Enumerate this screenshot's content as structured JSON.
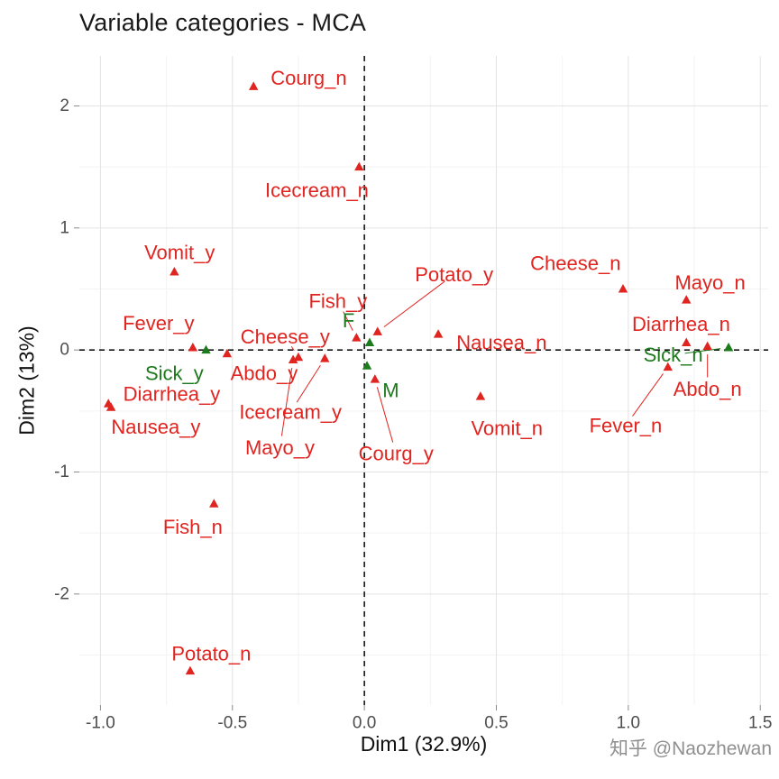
{
  "page": {
    "watermark": "知乎 @Naozhewan"
  },
  "chart_data": {
    "type": "scatter",
    "title": "Variable categories - MCA",
    "xlabel": "Dim1 (32.9%)",
    "ylabel": "Dim2 (13%)",
    "xlim": [
      -1.08,
      1.53
    ],
    "ylim": [
      -2.91,
      2.41
    ],
    "xticks": [
      "-1.0",
      "-0.5",
      "0.0",
      "0.5",
      "1.0",
      "1.5"
    ],
    "yticks": [
      "-2",
      "-1",
      "0",
      "1",
      "2"
    ],
    "grid": "major+minor",
    "zero_lines": "dashed",
    "legend": "none",
    "marker": "triangle",
    "colors": {
      "active": "#e02420",
      "supplementary": "#1d7a1d",
      "grid_major": "#e3e3e3",
      "grid_minor": "#f3f3f3",
      "axis_text": "#4d4d4d",
      "zero_line": "#151515"
    },
    "series": [
      {
        "name": "active-categories",
        "color": "#e02420",
        "points": [
          {
            "label": "Courg_n",
            "x": -0.42,
            "y": 2.16,
            "lx": -0.355,
            "ly": 2.23,
            "anchor": "start",
            "leader": false
          },
          {
            "label": "Icecream_n",
            "x": -0.02,
            "y": 1.5,
            "lx": -0.18,
            "ly": 1.31,
            "leader": false
          },
          {
            "label": "Vomit_y",
            "x": -0.72,
            "y": 0.64,
            "lx": -0.7,
            "ly": 0.8,
            "leader": false
          },
          {
            "label": "Cheese_n",
            "x": 0.98,
            "y": 0.5,
            "lx": 0.8,
            "ly": 0.71,
            "leader": false
          },
          {
            "label": "Mayo_n",
            "x": 1.22,
            "y": 0.41,
            "lx": 1.31,
            "ly": 0.55,
            "leader": false
          },
          {
            "label": "Potato_y",
            "x": 0.05,
            "y": 0.15,
            "lx": 0.34,
            "ly": 0.62,
            "leader": true
          },
          {
            "label": "Fish_y",
            "x": -0.03,
            "y": 0.1,
            "lx": -0.1,
            "ly": 0.4,
            "leader": true
          },
          {
            "label": "Nausea_n",
            "x": 0.28,
            "y": 0.13,
            "lx": 0.52,
            "ly": 0.06,
            "leader": false
          },
          {
            "label": "Fever_y",
            "x": -0.65,
            "y": 0.02,
            "lx": -0.78,
            "ly": 0.22,
            "leader": false
          },
          {
            "label": "Cheese_y",
            "x": -0.25,
            "y": -0.06,
            "lx": -0.3,
            "ly": 0.11,
            "leader": true
          },
          {
            "label": "Diarrhea_n",
            "x": 1.22,
            "y": 0.06,
            "lx": 1.2,
            "ly": 0.21,
            "leader": false
          },
          {
            "label": "Abdo_n",
            "x": 1.3,
            "y": 0.03,
            "lx": 1.3,
            "ly": -0.32,
            "leader": true
          },
          {
            "label": "Abdo_y",
            "x": -0.52,
            "y": -0.03,
            "lx": -0.38,
            "ly": -0.19,
            "leader": false
          },
          {
            "label": "Diarrhea_y",
            "x": -0.97,
            "y": -0.44,
            "lx": -0.73,
            "ly": -0.36,
            "leader": false
          },
          {
            "label": "Nausea_y",
            "x": -0.96,
            "y": -0.47,
            "lx": -0.79,
            "ly": -0.63,
            "leader": false
          },
          {
            "label": "Icecream_y",
            "x": -0.15,
            "y": -0.07,
            "lx": -0.28,
            "ly": -0.51,
            "leader": true
          },
          {
            "label": "Mayo_y",
            "x": -0.27,
            "y": -0.08,
            "lx": -0.32,
            "ly": -0.8,
            "leader": true
          },
          {
            "label": "Courg_y",
            "x": 0.04,
            "y": -0.24,
            "lx": 0.12,
            "ly": -0.85,
            "leader": true
          },
          {
            "label": "Vomit_n",
            "x": 0.44,
            "y": -0.38,
            "lx": 0.54,
            "ly": -0.64,
            "leader": false
          },
          {
            "label": "Fever_n",
            "x": 1.15,
            "y": -0.14,
            "lx": 0.99,
            "ly": -0.62,
            "leader": true
          },
          {
            "label": "Fish_n",
            "x": -0.57,
            "y": -1.26,
            "lx": -0.65,
            "ly": -1.45,
            "leader": false
          },
          {
            "label": "Potato_n",
            "x": -0.66,
            "y": -2.63,
            "lx": -0.58,
            "ly": -2.49,
            "leader": false
          }
        ]
      },
      {
        "name": "supplementary-categories",
        "color": "#1d7a1d",
        "points": [
          {
            "label": "F",
            "x": 0.02,
            "y": 0.06,
            "lx": -0.06,
            "ly": 0.24,
            "leader": false
          },
          {
            "label": "M",
            "x": 0.01,
            "y": -0.13,
            "lx": 0.1,
            "ly": -0.33,
            "leader": false
          },
          {
            "label": "Sick_y",
            "x": -0.6,
            "y": 0.0,
            "lx": -0.72,
            "ly": -0.19,
            "leader": false
          },
          {
            "label": "Sick_n",
            "x": 1.38,
            "y": 0.02,
            "lx": 1.17,
            "ly": -0.04,
            "leader": true
          }
        ]
      }
    ]
  }
}
